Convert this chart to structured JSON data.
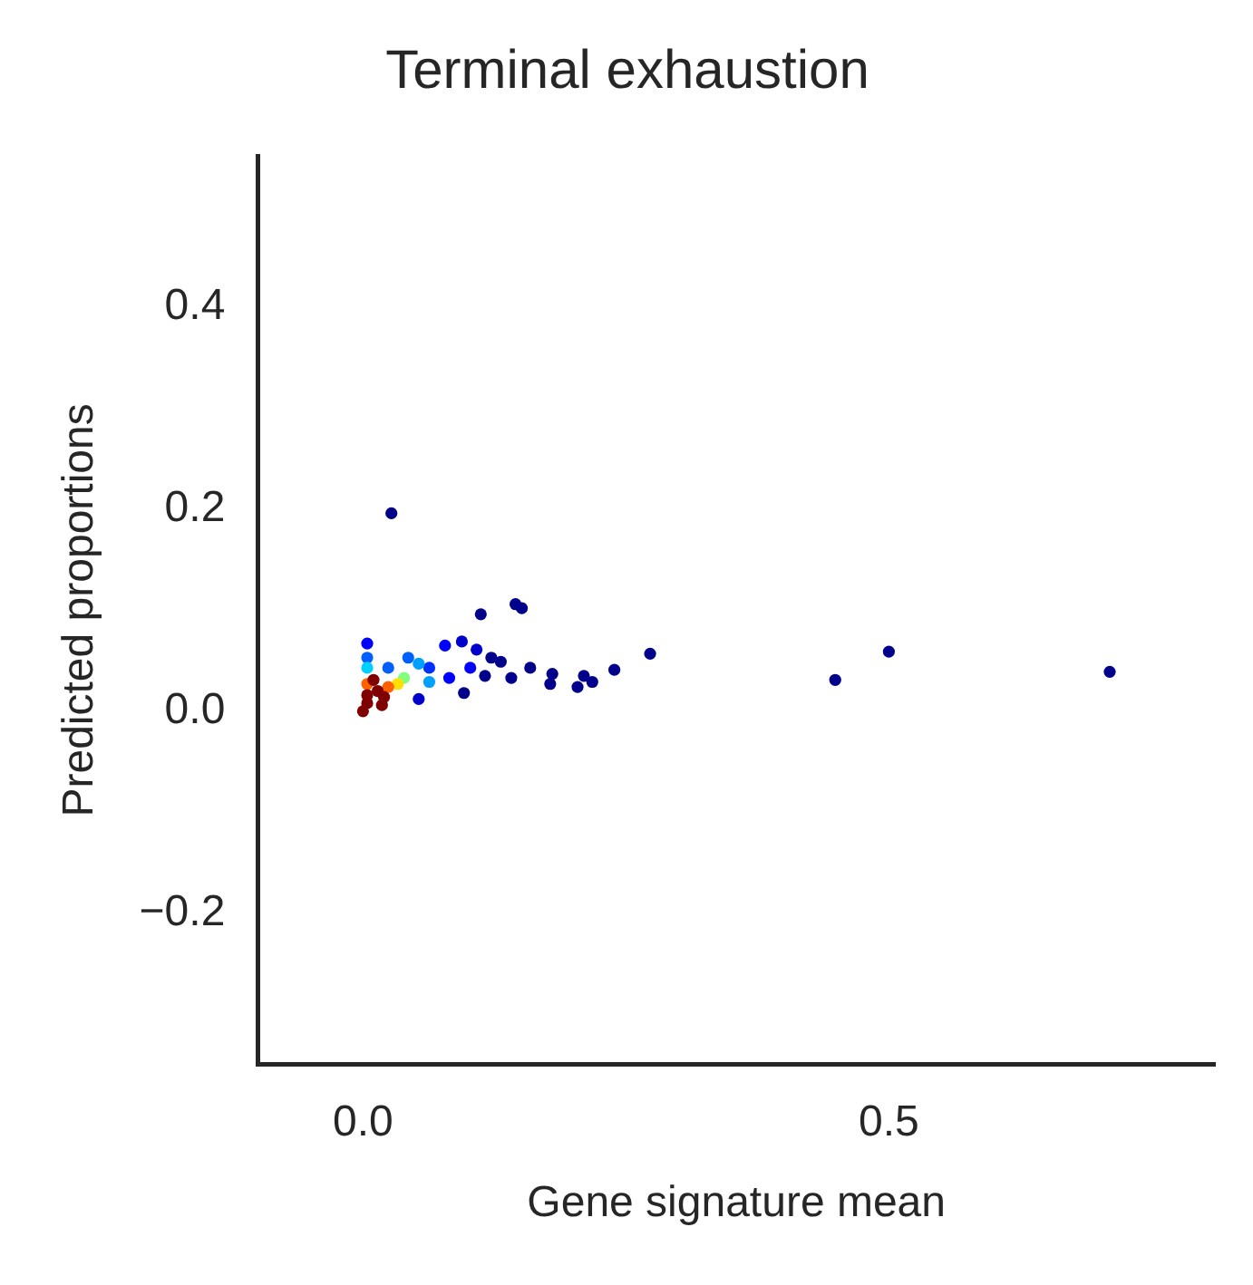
{
  "chart_data": {
    "type": "scatter",
    "title": "Terminal exhaustion",
    "xlabel": "Gene signature mean",
    "ylabel": "Predicted proportions",
    "xlim": [
      -0.1,
      0.81
    ],
    "ylim": [
      -0.35,
      0.55
    ],
    "xticks": [
      {
        "value": 0,
        "label": "0.0"
      },
      {
        "value": 0.5,
        "label": "0.5"
      }
    ],
    "yticks": [
      {
        "value": -0.2,
        "label": "−0.2"
      },
      {
        "value": 0,
        "label": "0.0"
      },
      {
        "value": 0.2,
        "label": "0.2"
      },
      {
        "value": 0.4,
        "label": "0.4"
      }
    ],
    "grid": false,
    "legend": false,
    "marker": "circle",
    "x": [
      0.027,
      0.145,
      0.151,
      0.112,
      0.273,
      0.449,
      0.5,
      0.71,
      0.239,
      0.218,
      0.204,
      0.21,
      0.178,
      0.18,
      0.159,
      0.141,
      0.131,
      0.116,
      0.096,
      0.053,
      0.078,
      0.094,
      0.108,
      0.122,
      0.102,
      0.082,
      0.063,
      0.043,
      0.024,
      0.004,
      0.004,
      0.063,
      0.053,
      0.039,
      0.033,
      0.024,
      0.004,
      0.004,
      0.014,
      0.004,
      0.01,
      0,
      0.02,
      0.004,
      0.018
    ],
    "values": [
      0.196,
      0.106,
      0.102,
      0.096,
      0.057,
      0.031,
      0.059,
      0.039,
      0.041,
      0.029,
      0.024,
      0.035,
      0.027,
      0.037,
      0.043,
      0.033,
      0.049,
      0.035,
      0.018,
      0.012,
      0.065,
      0.069,
      0.061,
      0.053,
      0.043,
      0.033,
      0.043,
      0.053,
      0.043,
      0.067,
      0.053,
      0.029,
      0.047,
      0.033,
      0.027,
      0.024,
      0.027,
      0.043,
      0.02,
      0.008,
      0.031,
      0.0,
      0.014,
      0.016,
      0.006
    ],
    "colors": [
      "#00008b",
      "#00008b",
      "#00008b",
      "#00008b",
      "#00008b",
      "#00008b",
      "#00008b",
      "#00008b",
      "#00008b",
      "#00008b",
      "#00008b",
      "#00008b",
      "#00008b",
      "#00008b",
      "#00008b",
      "#00008b",
      "#00008b",
      "#00008b",
      "#00008b",
      "#0000cd",
      "#0000ff",
      "#0000cd",
      "#0000cd",
      "#00008b",
      "#0000ff",
      "#0000ff",
      "#0030ff",
      "#0060ff",
      "#0060ff",
      "#0000ff",
      "#0060ff",
      "#00a0ff",
      "#00a0ff",
      "#80ff80",
      "#ffe000",
      "#ff6000",
      "#ff6000",
      "#00d0ff",
      "#800000",
      "#800000",
      "#800000",
      "#800000",
      "#800000",
      "#800000",
      "#800000"
    ]
  }
}
